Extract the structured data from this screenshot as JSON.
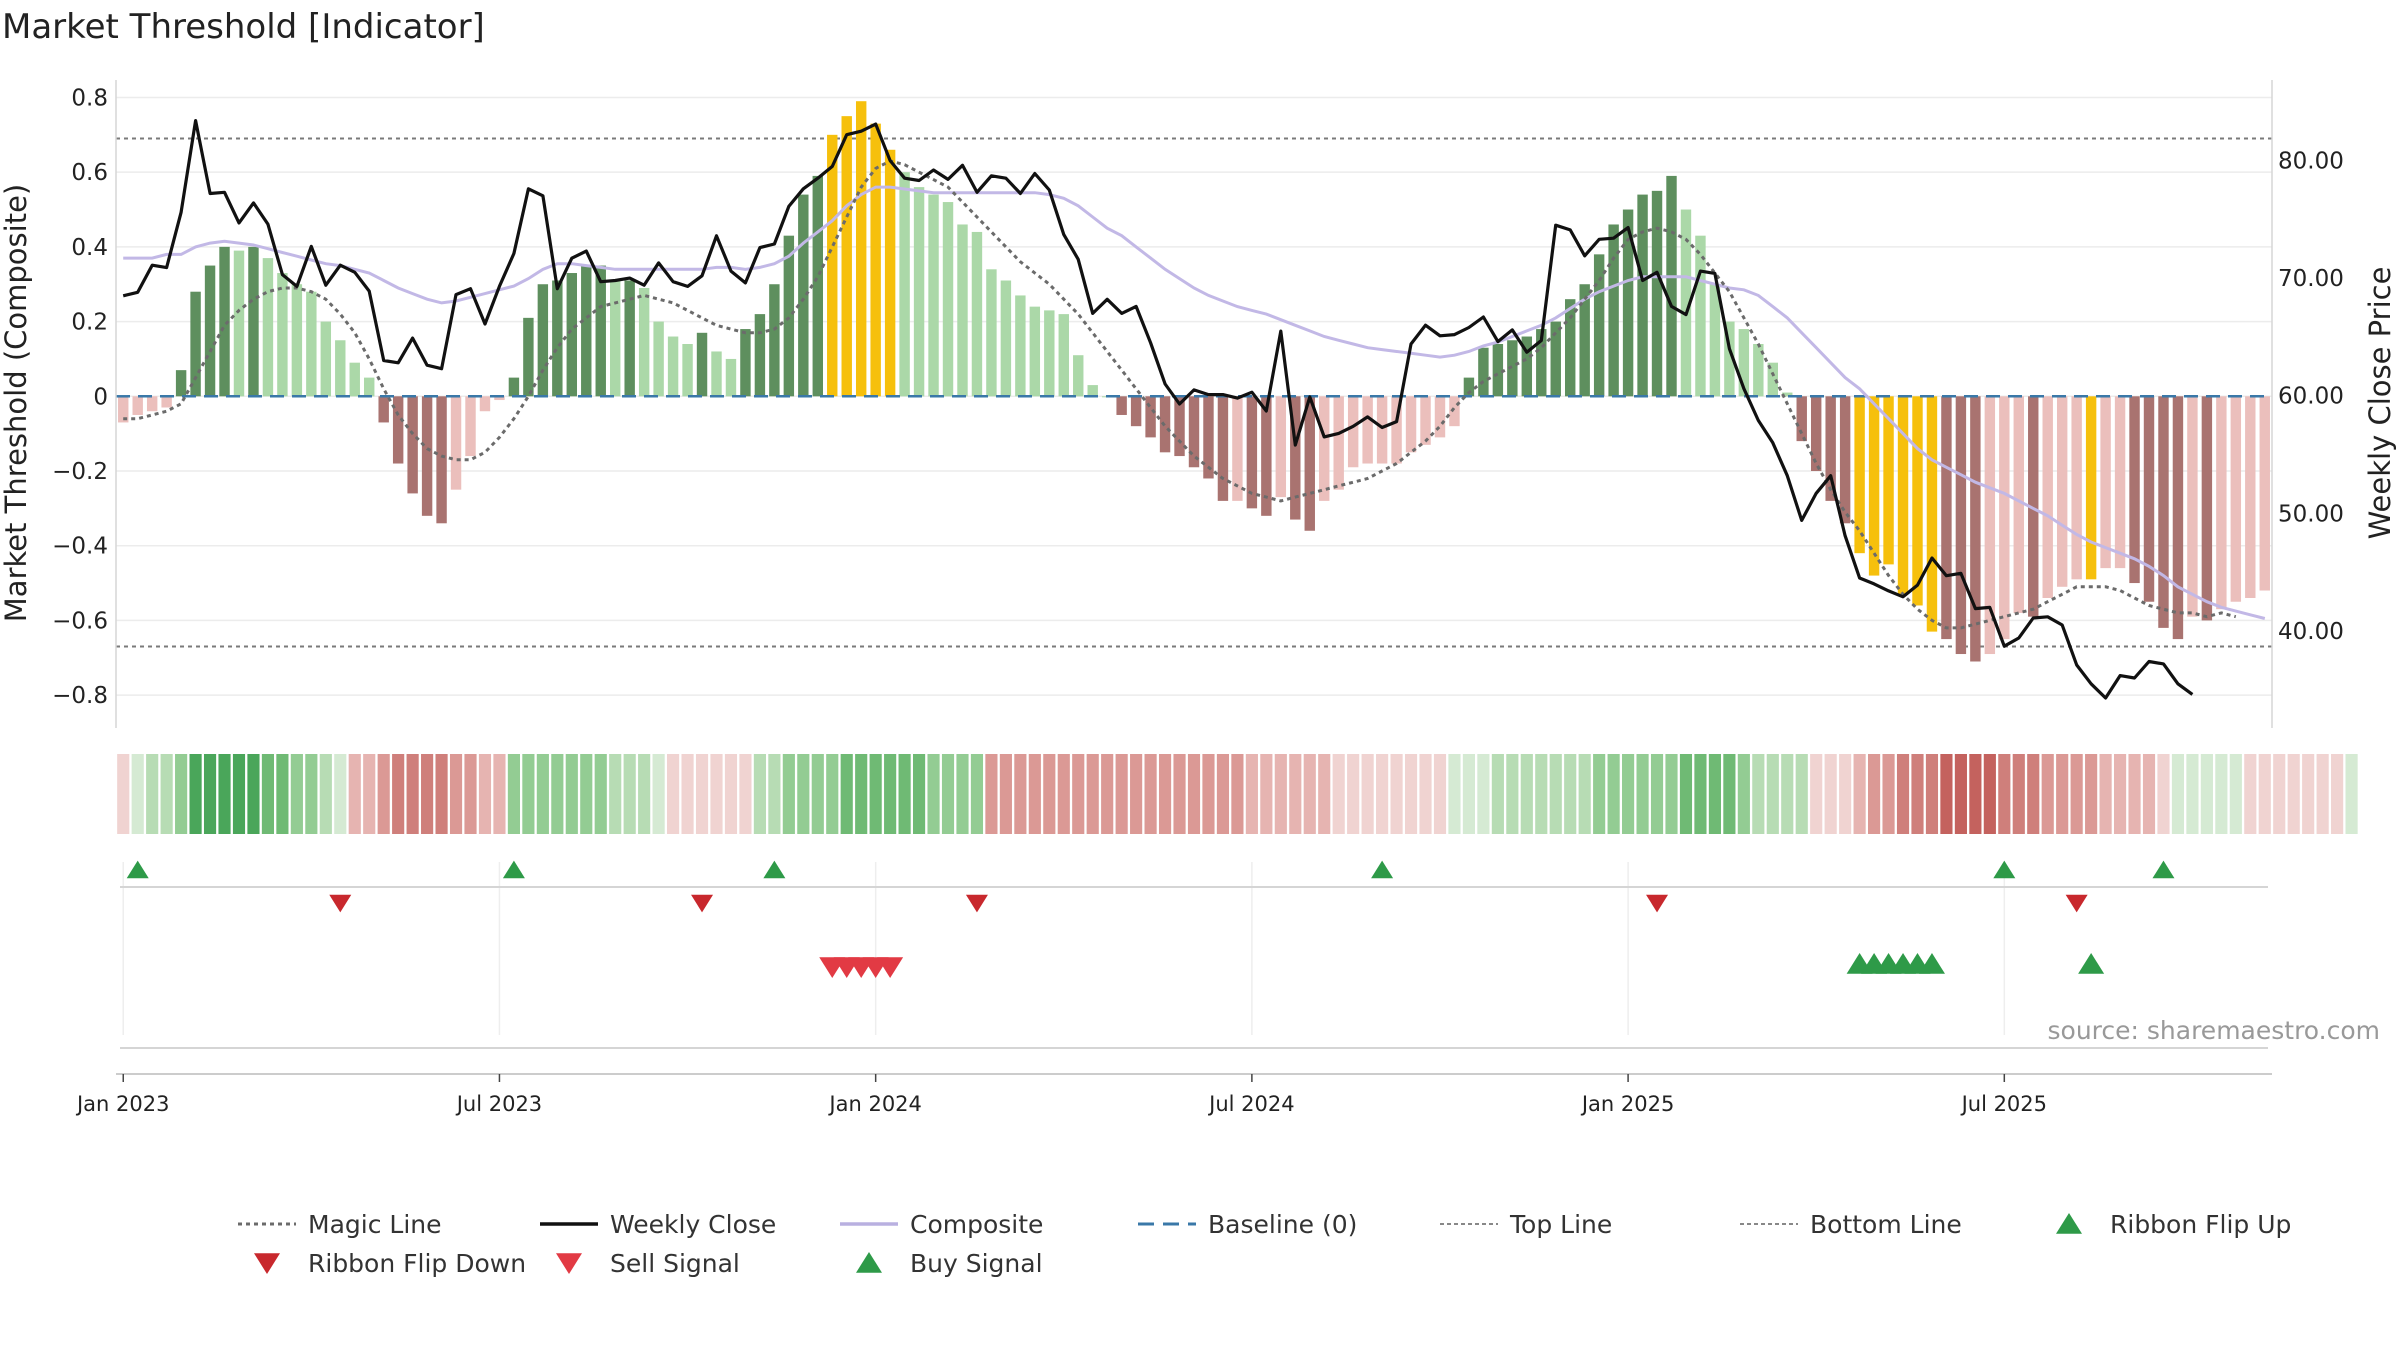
{
  "chart_data": {
    "type": "bar",
    "title": "Market Threshold [Indicator]",
    "ylabel_left": "Market Threshold (Composite)",
    "ylabel_right": "Weekly Close Price",
    "source": "source: sharemaestro.com",
    "ylim_left": [
      -0.88,
      0.82
    ],
    "ylim_right": [
      32,
      86
    ],
    "y_ticks_left": [
      {
        "value": 0.8,
        "label": "0.8"
      },
      {
        "value": 0.6,
        "label": "0.6"
      },
      {
        "value": 0.4,
        "label": "0.4"
      },
      {
        "value": 0.2,
        "label": "0.2"
      },
      {
        "value": 0,
        "label": "0"
      },
      {
        "value": -0.2,
        "label": "−0.2"
      },
      {
        "value": -0.4,
        "label": "−0.4"
      },
      {
        "value": -0.6,
        "label": "−0.6"
      },
      {
        "value": -0.8,
        "label": "−0.8"
      }
    ],
    "y_ticks_right": [
      {
        "value": 80,
        "label": "80.00"
      },
      {
        "value": 70,
        "label": "70.00"
      },
      {
        "value": 60,
        "label": "60.00"
      },
      {
        "value": 50,
        "label": "50.00"
      },
      {
        "value": 40,
        "label": "40.00"
      }
    ],
    "x_ticks": [
      {
        "week": 1,
        "label": "Jan 2023"
      },
      {
        "week": 27,
        "label": "Jul 2023"
      },
      {
        "week": 53,
        "label": "Jan 2024"
      },
      {
        "week": 79,
        "label": "Jul 2024"
      },
      {
        "week": 105,
        "label": "Jan 2025"
      },
      {
        "week": 131,
        "label": "Jul 2025"
      }
    ],
    "top_line": 0.69,
    "bottom_line": -0.67,
    "baseline": 0,
    "composite_bars": [
      -0.07,
      -0.05,
      -0.04,
      -0.03,
      0.07,
      0.28,
      0.35,
      0.4,
      0.39,
      0.4,
      0.37,
      0.33,
      0.3,
      0.28,
      0.2,
      0.15,
      0.09,
      0.05,
      -0.07,
      -0.18,
      -0.26,
      -0.32,
      -0.34,
      -0.25,
      -0.16,
      -0.04,
      -0.01,
      0.05,
      0.21,
      0.3,
      0.31,
      0.33,
      0.35,
      0.35,
      0.31,
      0.31,
      0.29,
      0.2,
      0.16,
      0.14,
      0.17,
      0.12,
      0.1,
      0.18,
      0.22,
      0.3,
      0.43,
      0.54,
      0.59,
      0.7,
      0.75,
      0.79,
      0.73,
      0.66,
      0.6,
      0.56,
      0.54,
      0.52,
      0.46,
      0.44,
      0.34,
      0.31,
      0.27,
      0.24,
      0.23,
      0.22,
      0.11,
      0.03,
      0.0,
      -0.05,
      -0.08,
      -0.11,
      -0.15,
      -0.16,
      -0.19,
      -0.22,
      -0.28,
      -0.28,
      -0.3,
      -0.32,
      -0.27,
      -0.33,
      -0.36,
      -0.28,
      -0.25,
      -0.19,
      -0.18,
      -0.18,
      -0.18,
      -0.15,
      -0.13,
      -0.11,
      -0.08,
      0.05,
      0.13,
      0.14,
      0.15,
      0.16,
      0.18,
      0.2,
      0.26,
      0.3,
      0.38,
      0.46,
      0.5,
      0.54,
      0.55,
      0.59,
      0.5,
      0.43,
      0.3,
      0.2,
      0.18,
      0.14,
      0.09,
      0.01,
      -0.12,
      -0.2,
      -0.28,
      -0.34,
      -0.42,
      -0.48,
      -0.45,
      -0.53,
      -0.56,
      -0.63,
      -0.65,
      -0.69,
      -0.71,
      -0.69,
      -0.65,
      -0.58,
      -0.59,
      -0.54,
      -0.51,
      -0.49,
      -0.49,
      -0.46,
      -0.46,
      -0.5,
      -0.55,
      -0.62,
      -0.65,
      -0.59,
      -0.6,
      -0.57,
      -0.55,
      -0.54,
      -0.52
    ],
    "weekly_close": [
      68.5,
      68.8,
      71.1,
      70.9,
      75.6,
      83.4,
      77.2,
      77.3,
      74.7,
      76.4,
      74.6,
      70.3,
      69.3,
      72.7,
      69.4,
      71.1,
      70.5,
      68.9,
      63.0,
      62.8,
      64.9,
      62.6,
      62.3,
      68.6,
      69.1,
      66.1,
      69.3,
      72.1,
      77.6,
      77.0,
      69.1,
      71.7,
      72.3,
      69.7,
      69.8,
      70.0,
      69.4,
      71.3,
      69.7,
      69.3,
      70.2,
      73.6,
      70.6,
      69.6,
      72.6,
      72.9,
      76.1,
      77.6,
      78.5,
      79.5,
      82.2,
      82.5,
      83.1,
      80.0,
      78.5,
      78.3,
      79.2,
      78.4,
      79.6,
      77.3,
      78.7,
      78.5,
      77.2,
      78.9,
      77.5,
      73.7,
      71.6,
      67.0,
      68.2,
      67.0,
      67.6,
      64.5,
      61.0,
      59.3,
      60.5,
      60.1,
      60.1,
      59.8,
      60.3,
      58.7,
      65.5,
      55.8,
      59.9,
      56.5,
      56.8,
      57.4,
      58.2,
      57.3,
      57.8,
      64.4,
      66.0,
      65.1,
      65.2,
      65.8,
      66.7,
      64.6,
      65.6,
      63.7,
      64.7,
      74.5,
      74.1,
      71.9,
      73.3,
      73.4,
      74.3,
      69.8,
      70.5,
      67.6,
      66.9,
      70.6,
      70.4,
      64.0,
      60.6,
      57.9,
      56.0,
      53.2,
      49.4,
      51.7,
      53.2,
      48.1,
      44.5,
      44.0,
      43.4,
      42.9,
      43.9,
      46.2,
      44.7,
      44.9,
      41.9,
      42.0,
      38.7,
      39.4,
      41.1,
      41.2,
      40.5,
      37.1,
      35.5,
      34.3,
      36.2,
      36.0,
      37.4,
      37.2,
      35.5,
      34.6
    ],
    "composite_line": [
      0.37,
      0.37,
      0.37,
      0.38,
      0.38,
      0.4,
      0.41,
      0.415,
      0.41,
      0.405,
      0.395,
      0.385,
      0.375,
      0.365,
      0.355,
      0.35,
      0.34,
      0.33,
      0.31,
      0.29,
      0.275,
      0.26,
      0.25,
      0.255,
      0.265,
      0.275,
      0.285,
      0.295,
      0.315,
      0.34,
      0.355,
      0.355,
      0.35,
      0.345,
      0.34,
      0.34,
      0.34,
      0.34,
      0.34,
      0.34,
      0.34,
      0.345,
      0.345,
      0.34,
      0.345,
      0.355,
      0.375,
      0.41,
      0.44,
      0.47,
      0.51,
      0.54,
      0.56,
      0.56,
      0.555,
      0.55,
      0.545,
      0.545,
      0.545,
      0.545,
      0.545,
      0.545,
      0.545,
      0.545,
      0.54,
      0.53,
      0.51,
      0.48,
      0.45,
      0.43,
      0.4,
      0.37,
      0.34,
      0.315,
      0.29,
      0.27,
      0.255,
      0.24,
      0.23,
      0.22,
      0.205,
      0.19,
      0.175,
      0.16,
      0.15,
      0.14,
      0.13,
      0.125,
      0.12,
      0.115,
      0.11,
      0.105,
      0.11,
      0.12,
      0.135,
      0.145,
      0.16,
      0.175,
      0.19,
      0.21,
      0.235,
      0.26,
      0.28,
      0.295,
      0.31,
      0.32,
      0.32,
      0.32,
      0.32,
      0.31,
      0.3,
      0.29,
      0.285,
      0.27,
      0.24,
      0.21,
      0.17,
      0.13,
      0.09,
      0.05,
      0.02,
      -0.02,
      -0.06,
      -0.1,
      -0.14,
      -0.17,
      -0.19,
      -0.21,
      -0.23,
      -0.245,
      -0.26,
      -0.28,
      -0.3,
      -0.32,
      -0.345,
      -0.37,
      -0.39,
      -0.405,
      -0.42,
      -0.435,
      -0.455,
      -0.48,
      -0.51,
      -0.53,
      -0.55,
      -0.565,
      -0.575,
      -0.585,
      -0.595
    ],
    "magic_line": [
      -0.06,
      -0.06,
      -0.05,
      -0.04,
      -0.02,
      0.05,
      0.12,
      0.19,
      0.23,
      0.26,
      0.28,
      0.29,
      0.29,
      0.28,
      0.26,
      0.22,
      0.17,
      0.1,
      0.02,
      -0.05,
      -0.1,
      -0.14,
      -0.16,
      -0.17,
      -0.17,
      -0.15,
      -0.11,
      -0.06,
      0.0,
      0.07,
      0.13,
      0.18,
      0.21,
      0.24,
      0.25,
      0.26,
      0.27,
      0.26,
      0.25,
      0.23,
      0.21,
      0.19,
      0.18,
      0.17,
      0.17,
      0.18,
      0.21,
      0.26,
      0.32,
      0.4,
      0.48,
      0.56,
      0.61,
      0.63,
      0.62,
      0.6,
      0.58,
      0.56,
      0.52,
      0.48,
      0.44,
      0.4,
      0.36,
      0.33,
      0.3,
      0.26,
      0.22,
      0.17,
      0.12,
      0.07,
      0.02,
      -0.03,
      -0.08,
      -0.12,
      -0.16,
      -0.19,
      -0.22,
      -0.24,
      -0.26,
      -0.27,
      -0.28,
      -0.27,
      -0.26,
      -0.25,
      -0.24,
      -0.23,
      -0.22,
      -0.2,
      -0.18,
      -0.15,
      -0.12,
      -0.08,
      -0.03,
      0.01,
      0.04,
      0.06,
      0.08,
      0.1,
      0.13,
      0.17,
      0.21,
      0.26,
      0.31,
      0.37,
      0.42,
      0.44,
      0.45,
      0.44,
      0.42,
      0.38,
      0.33,
      0.28,
      0.21,
      0.14,
      0.06,
      -0.02,
      -0.1,
      -0.18,
      -0.25,
      -0.31,
      -0.36,
      -0.42,
      -0.48,
      -0.53,
      -0.57,
      -0.6,
      -0.62,
      -0.62,
      -0.61,
      -0.6,
      -0.59,
      -0.58,
      -0.57,
      -0.55,
      -0.53,
      -0.51,
      -0.51,
      -0.51,
      -0.52,
      -0.54,
      -0.56,
      -0.57,
      -0.58,
      -0.58,
      -0.59,
      -0.58,
      -0.59
    ],
    "ribbon": [
      -1,
      1,
      2,
      2,
      3,
      5,
      5,
      5,
      5,
      5,
      4,
      4,
      3,
      3,
      2,
      1,
      -2,
      -2,
      -3,
      -4,
      -4,
      -4,
      -4,
      -3,
      -3,
      -2,
      -2,
      3,
      3,
      3,
      3,
      3,
      3,
      3,
      2,
      2,
      2,
      1,
      -1,
      -1,
      -1,
      -1,
      -1,
      -1,
      2,
      2,
      3,
      3,
      3,
      3,
      4,
      4,
      4,
      4,
      4,
      4,
      3,
      3,
      3,
      3,
      -3,
      -3,
      -3,
      -3,
      -3,
      -3,
      -3,
      -3,
      -3,
      -3,
      -3,
      -3,
      -3,
      -3,
      -3,
      -3,
      -3,
      -3,
      -2,
      -2,
      -2,
      -2,
      -2,
      -2,
      -1,
      -1,
      -1,
      -1,
      -1,
      -1,
      -1,
      -1,
      1,
      1,
      1,
      2,
      2,
      2,
      2,
      2,
      2,
      2,
      3,
      3,
      3,
      3,
      3,
      3,
      4,
      4,
      4,
      4,
      3,
      2,
      2,
      2,
      2,
      -1,
      -1,
      -1,
      -2,
      -3,
      -3,
      -4,
      -4,
      -4,
      -5,
      -5,
      -5,
      -5,
      -4,
      -4,
      -4,
      -3,
      -3,
      -3,
      -3,
      -2,
      -2,
      -2,
      -2,
      -1,
      1,
      1,
      1,
      1,
      1,
      -1,
      -1,
      -1,
      -1,
      -1,
      -1,
      -1,
      1
    ],
    "ribbon_flip_up": [
      2,
      28,
      46,
      88,
      131,
      142
    ],
    "ribbon_flip_down": [
      16,
      41,
      60,
      107,
      136
    ],
    "sell_signals": [
      50,
      51,
      52,
      53,
      54
    ],
    "buy_signals": [
      121,
      122,
      123,
      124,
      125,
      126,
      137
    ],
    "legend": [
      {
        "name": "Magic Line",
        "style": "dotted",
        "color": "#6b6b6b"
      },
      {
        "name": "Weekly Close",
        "style": "solid",
        "color": "#111111"
      },
      {
        "name": "Composite",
        "style": "solid",
        "color": "#b9b0e0"
      },
      {
        "name": "Baseline (0)",
        "style": "dashed",
        "color": "#3a78a8"
      },
      {
        "name": "Top Line",
        "style": "dotted-fine",
        "color": "#888888"
      },
      {
        "name": "Bottom Line",
        "style": "dotted-fine",
        "color": "#888888"
      },
      {
        "name": "Ribbon Flip Up",
        "style": "tri-up",
        "color": "#2e9a48"
      },
      {
        "name": "Ribbon Flip Down",
        "style": "tri-down",
        "color": "#c8282d"
      },
      {
        "name": "Sell Signal",
        "style": "tri-down",
        "color": "#e23a44"
      },
      {
        "name": "Buy Signal",
        "style": "tri-up",
        "color": "#2e9a48"
      }
    ],
    "colors": {
      "strong_green": "#5e8f5e",
      "light_green": "#abd8a8",
      "strong_red": "#a97370",
      "light_red": "#ebbfbc",
      "gold": "#f6c00c"
    }
  }
}
